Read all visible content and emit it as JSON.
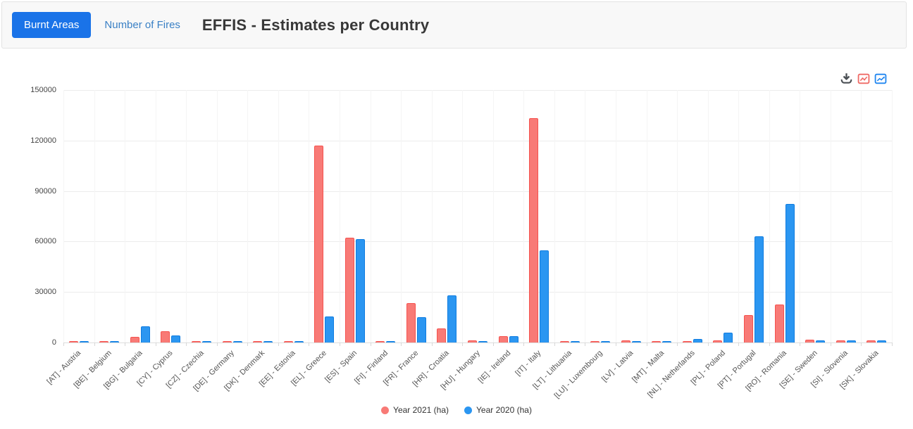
{
  "header": {
    "burnt_areas_tab": "Burnt Areas",
    "number_of_fires_tab": "Number of Fires",
    "title": "EFFIS - Estimates per Country"
  },
  "toolbar": {
    "icons": [
      "download-icon",
      "red-line-chart-icon",
      "blue-line-chart-icon"
    ]
  },
  "colors": {
    "primary_button_blue": "#1a73e8",
    "link_blue": "#3a80c5",
    "series_2021_fill": "#f87a76",
    "series_2021_border": "#f5524e",
    "series_2020_fill": "#2b96f1",
    "series_2020_border": "#0f7ce0"
  },
  "chart_data": {
    "type": "bar",
    "title": "EFFIS - Estimates per Country",
    "categories": [
      "[AT] - Austria",
      "[BE] - Belgium",
      "[BG] - Bulgaria",
      "[CY] - Cyprus",
      "[CZ] - Czechia",
      "[DE] - Germany",
      "[DK] - Denmark",
      "[EE] - Estonia",
      "[EL] - Greece",
      "[ES] - Spain",
      "[FI] - Finland",
      "[FR] - France",
      "[HR] - Croatia",
      "[HU] - Hungary",
      "[IE] - Ireland",
      "[IT] - Italy",
      "[LT] - Lithuania",
      "[LU] - Luxembourg",
      "[LV] - Latvia",
      "[MT] - Malta",
      "[NL] - Netherlands",
      "[PL] - Poland",
      "[PT] - Portugal",
      "[RO] - Romania",
      "[SE] - Sweden",
      "[SI] - Slovenia",
      "[SK] - Slovakia"
    ],
    "series": [
      {
        "name": "Year 2021 (ha)",
        "color": "#f87a76",
        "border": "#f5524e",
        "values": [
          600,
          900,
          3200,
          6600,
          500,
          800,
          900,
          400,
          117000,
          62300,
          800,
          23200,
          8500,
          1100,
          3600,
          133400,
          800,
          500,
          1300,
          600,
          800,
          1300,
          16200,
          22500,
          1700,
          1100,
          1100
        ]
      },
      {
        "name": "Year 2020 (ha)",
        "color": "#2b96f1",
        "border": "#0f7ce0",
        "values": [
          700,
          600,
          9600,
          4000,
          700,
          900,
          500,
          600,
          15500,
          61600,
          800,
          15200,
          28100,
          900,
          3700,
          54600,
          600,
          800,
          800,
          900,
          2000,
          6000,
          63200,
          82200,
          1400,
          1100,
          1300
        ]
      }
    ],
    "xlabel": "",
    "ylabel": "",
    "ylim": [
      0,
      150000
    ],
    "yticks": [
      0,
      30000,
      60000,
      90000,
      120000,
      150000
    ],
    "grid": true,
    "legend_position": "bottom"
  }
}
